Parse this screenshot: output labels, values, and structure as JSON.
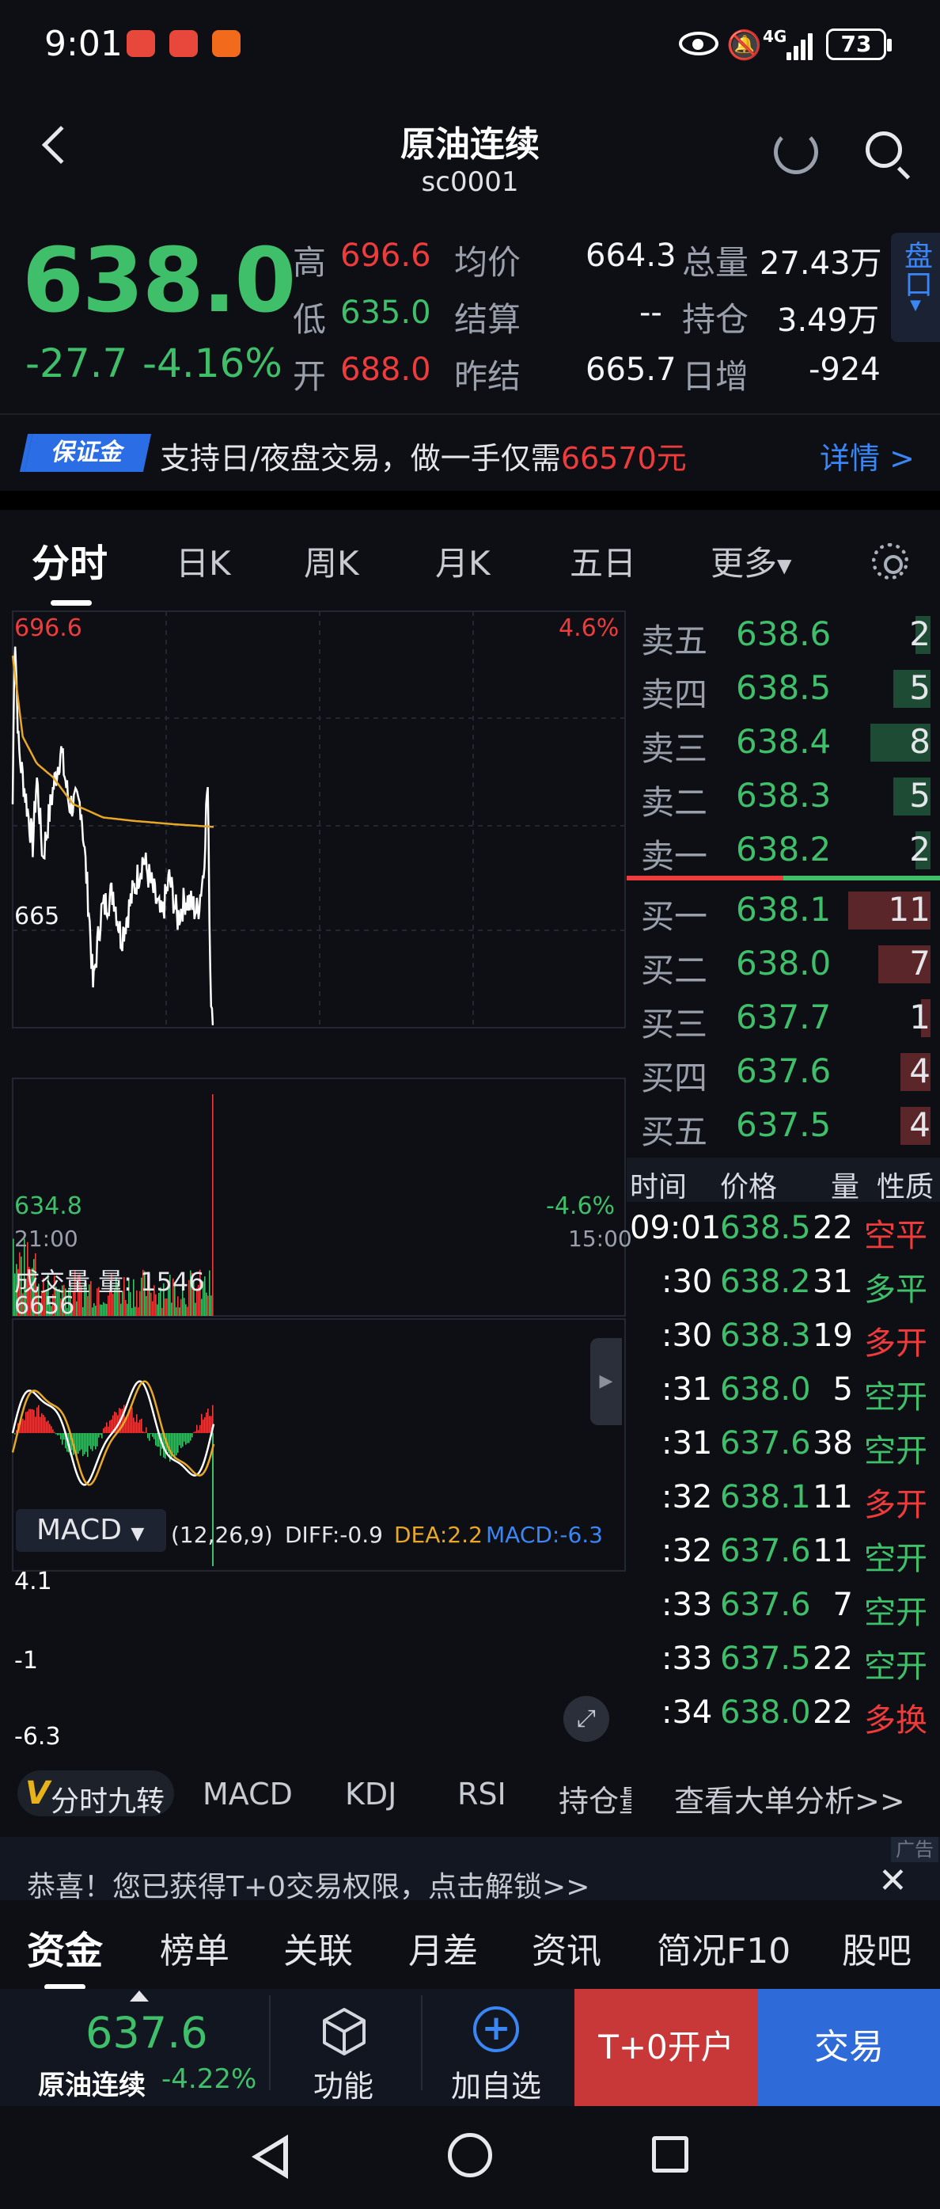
{
  "status": {
    "time": "9:01",
    "network": "4G",
    "battery": "73"
  },
  "header": {
    "title": "原油连续",
    "code": "sc0001"
  },
  "quote": {
    "price": "638.0",
    "change": "-27.7",
    "change_pct": "-4.16%",
    "high_label": "高",
    "high": "696.6",
    "low_label": "低",
    "low": "635.0",
    "open_label": "开",
    "open": "688.0",
    "avg_label": "均价",
    "avg": "664.3",
    "settle_label": "结算",
    "settle": "--",
    "prev_settle_label": "昨结",
    "prev_settle": "665.7",
    "volume_label": "总量",
    "volume": "27.43万",
    "oi_label": "持仓",
    "oi": "3.49万",
    "oi_chg_label": "日增",
    "oi_chg": "-924",
    "pankou": "盘口"
  },
  "banner": {
    "badge": "保证金",
    "text": "支持日/夜盘交易，做一手仅需",
    "amount": "66570元",
    "detail": "详情 >"
  },
  "tabs": [
    "分时",
    "日K",
    "周K",
    "月K",
    "五日",
    "更多"
  ],
  "chart": {
    "top_price": "696.6",
    "top_pct": "4.6%",
    "mid_price": "665",
    "bottom_price": "634.8",
    "bottom_pct": "-4.6%",
    "start_time": "21:00",
    "end_time": "15:00",
    "volume_title": "成交量 量: 1546",
    "volume_max": "6656",
    "macd_label": "MACD",
    "macd_params": "(12,26,9)",
    "diff": "DIFF:-0.9",
    "dea": "DEA:2.2",
    "macd": "MACD:-6.3",
    "macd_top": "4.1",
    "macd_mid": "-1",
    "macd_bottom": "-6.3",
    "colors": {
      "price_line": "#ffffff",
      "avg_line": "#e8a826",
      "up": "#ee3b3b",
      "down": "#3fbf6a"
    }
  },
  "orderbook": {
    "asks": [
      {
        "label": "卖五",
        "price": "638.6",
        "qty": "2"
      },
      {
        "label": "卖四",
        "price": "638.5",
        "qty": "5"
      },
      {
        "label": "卖三",
        "price": "638.4",
        "qty": "8"
      },
      {
        "label": "卖二",
        "price": "638.3",
        "qty": "5"
      },
      {
        "label": "卖一",
        "price": "638.2",
        "qty": "2"
      }
    ],
    "bids": [
      {
        "label": "买一",
        "price": "638.1",
        "qty": "11"
      },
      {
        "label": "买二",
        "price": "638.0",
        "qty": "7"
      },
      {
        "label": "买三",
        "price": "637.7",
        "qty": "1"
      },
      {
        "label": "买四",
        "price": "637.6",
        "qty": "4"
      },
      {
        "label": "买五",
        "price": "637.5",
        "qty": "4"
      }
    ]
  },
  "ticker": {
    "headers": [
      "时间",
      "价格",
      "量",
      "性质"
    ],
    "rows": [
      {
        "time": "09:01",
        "price": "638.5",
        "qty": "22",
        "type": "空平",
        "color": "red"
      },
      {
        "time": ":30",
        "price": "638.2",
        "qty": "31",
        "type": "多平",
        "color": "green"
      },
      {
        "time": ":30",
        "price": "638.3",
        "qty": "19",
        "type": "多开",
        "color": "red"
      },
      {
        "time": ":31",
        "price": "638.0",
        "qty": "5",
        "type": "空开",
        "color": "green"
      },
      {
        "time": ":31",
        "price": "637.6",
        "qty": "38",
        "type": "空开",
        "color": "green"
      },
      {
        "time": ":32",
        "price": "638.1",
        "qty": "11",
        "type": "多开",
        "color": "red"
      },
      {
        "time": ":32",
        "price": "637.6",
        "qty": "11",
        "type": "空开",
        "color": "green"
      },
      {
        "time": ":33",
        "price": "637.6",
        "qty": "7",
        "type": "空开",
        "color": "green"
      },
      {
        "time": ":33",
        "price": "637.5",
        "qty": "22",
        "type": "空开",
        "color": "green"
      },
      {
        "time": ":34",
        "price": "638.0",
        "qty": "22",
        "type": "多换",
        "color": "red"
      }
    ]
  },
  "indicator_tabs": {
    "v_letter": "V",
    "v_text": "分时九转",
    "items": [
      "MACD",
      "KDJ",
      "RSI",
      "持仓量"
    ],
    "analysis": "查看大单分析>>"
  },
  "ad": {
    "tag": "广告",
    "text": "恭喜！您已获得T+0交易权限，点击解锁>>",
    "close": "✕"
  },
  "bottom_tabs": [
    "资金",
    "榜单",
    "关联",
    "月差",
    "资讯",
    "简况F10",
    "股吧"
  ],
  "bottom_bar": {
    "price": "637.6",
    "name": "原油连续",
    "pct": "-4.22%",
    "func": "功能",
    "watch": "加自选",
    "open": "T+0开户",
    "trade": "交易"
  }
}
